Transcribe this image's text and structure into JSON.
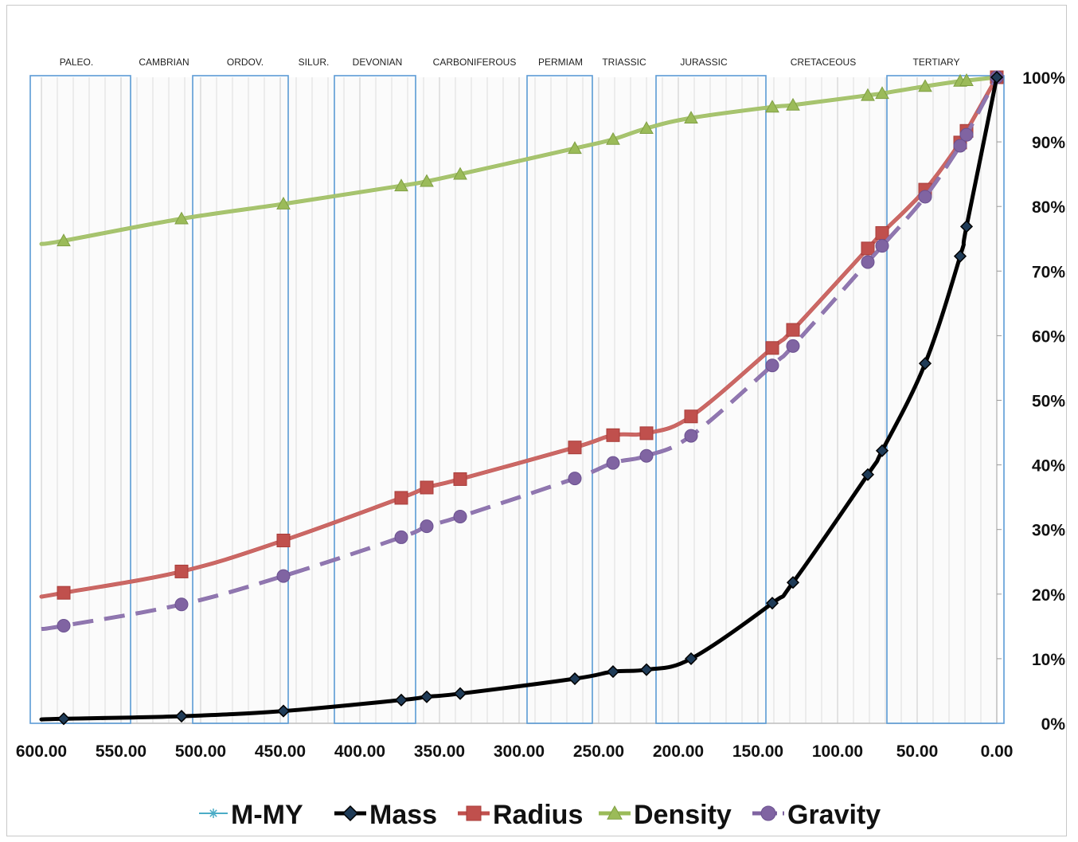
{
  "chart_data": {
    "type": "line",
    "title": "",
    "xlabel": "",
    "ylabel": "",
    "xlim": [
      600,
      0
    ],
    "ylim": [
      0,
      100
    ],
    "x_reversed": true,
    "x_ticks": [
      "600.00",
      "550.00",
      "500.00",
      "450.00",
      "400.00",
      "350.00",
      "300.00",
      "250.00",
      "200.00",
      "150.00",
      "100.00",
      "50.00",
      "0.00"
    ],
    "y_ticks": [
      "0%",
      "10%",
      "20%",
      "30%",
      "40%",
      "50%",
      "60%",
      "70%",
      "80%",
      "90%",
      "100%"
    ],
    "grid": "vertical minor lines every 10",
    "legend_position": "bottom",
    "periods": [
      {
        "label": "PALEO.",
        "x": 578,
        "box": [
          607,
          544
        ]
      },
      {
        "label": "CAMBRIAN",
        "x": 523,
        "box": null
      },
      {
        "label": "ORDOV.",
        "x": 472,
        "box": [
          505,
          445
        ]
      },
      {
        "label": "SILUR.",
        "x": 429,
        "box": null
      },
      {
        "label": "DEVONIAN",
        "x": 389,
        "box": [
          416,
          365
        ]
      },
      {
        "label": "CARBONIFEROUS",
        "x": 328,
        "box": null
      },
      {
        "label": "PERMIAM",
        "x": 274,
        "box": [
          295,
          254
        ]
      },
      {
        "label": "TRIASSIC",
        "x": 234,
        "box": null
      },
      {
        "label": "JURASSIC",
        "x": 184,
        "box": [
          214,
          145
        ]
      },
      {
        "label": "CRETACEOUS",
        "x": 109,
        "box": null
      },
      {
        "label": "TERTIARY",
        "x": 38,
        "box": [
          69,
          0
        ]
      }
    ],
    "series": [
      {
        "name": "M-MY",
        "color": "#4bacc6",
        "marker": "star",
        "x": [],
        "values": []
      },
      {
        "name": "Mass",
        "color": "#000000",
        "marker": "diamond",
        "x": [
          600,
          586,
          512,
          448,
          374,
          358,
          337,
          265,
          241,
          220,
          192,
          141,
          128,
          81,
          72,
          45,
          23,
          19,
          0
        ],
        "values": [
          0.6,
          0.7,
          1.1,
          1.9,
          3.6,
          4.1,
          4.6,
          6.9,
          8.0,
          8.3,
          10.0,
          18.6,
          21.8,
          38.5,
          42.2,
          55.7,
          72.3,
          76.9,
          100
        ]
      },
      {
        "name": "Radius",
        "color": "#c0504d",
        "marker": "square",
        "x": [
          600,
          586,
          512,
          448,
          374,
          358,
          337,
          265,
          241,
          220,
          192,
          141,
          128,
          81,
          72,
          45,
          23,
          19,
          0
        ],
        "values": [
          19.6,
          20.2,
          23.5,
          28.3,
          34.9,
          36.5,
          37.8,
          42.7,
          44.6,
          44.9,
          47.5,
          58.1,
          60.9,
          73.5,
          75.9,
          82.6,
          89.9,
          91.7,
          100
        ]
      },
      {
        "name": "Density",
        "color": "#9bbb59",
        "marker": "triangle",
        "x": [
          600,
          586,
          512,
          448,
          374,
          358,
          337,
          265,
          241,
          220,
          192,
          141,
          128,
          81,
          72,
          45,
          23,
          19,
          0
        ],
        "values": [
          74.2,
          74.7,
          78.1,
          80.4,
          83.2,
          83.9,
          85.0,
          89.0,
          90.4,
          92.1,
          93.7,
          95.4,
          95.7,
          97.2,
          97.5,
          98.6,
          99.4,
          99.5,
          100
        ]
      },
      {
        "name": "Gravity",
        "color": "#8064a2",
        "marker": "circle",
        "dashed": true,
        "x": [
          600,
          586,
          512,
          448,
          374,
          358,
          337,
          265,
          241,
          220,
          192,
          141,
          128,
          81,
          72,
          45,
          23,
          19,
          0
        ],
        "values": [
          14.6,
          15.1,
          18.4,
          22.8,
          28.8,
          30.5,
          32.0,
          37.9,
          40.3,
          41.4,
          44.5,
          55.4,
          58.4,
          71.4,
          73.9,
          81.5,
          89.4,
          91.1,
          100
        ]
      }
    ]
  }
}
